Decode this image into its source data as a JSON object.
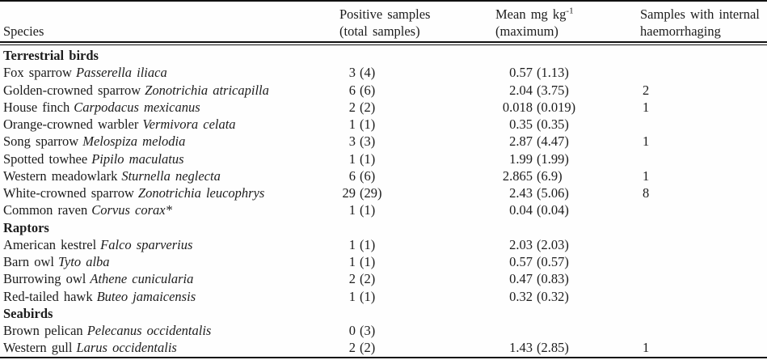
{
  "table": {
    "headers": {
      "species": "Species",
      "positive_line1": "Positive samples",
      "positive_line2": "(total samples)",
      "mean_line1": "Mean mg kg",
      "mean_sup": "-1",
      "mean_line2": "(maximum)",
      "haem_line1": "Samples with internal",
      "haem_line2": "haemorrhaging"
    },
    "sections": [
      {
        "label": "Terrestrial birds",
        "rows": [
          {
            "common": "Fox sparrow",
            "scientific": "Passerella iliaca",
            "positive": "3",
            "total": "(4)",
            "mean": "0.57",
            "maximum": "(1.13)",
            "haemorrhaging": ""
          },
          {
            "common": "Golden-crowned sparrow",
            "scientific": "Zonotrichia atricapilla",
            "positive": "6",
            "total": "(6)",
            "mean": "2.04",
            "maximum": "(3.75)",
            "haemorrhaging": "2"
          },
          {
            "common": "House finch",
            "scientific": "Carpodacus mexicanus",
            "positive": "2",
            "total": "(2)",
            "mean": "0.018",
            "maximum": "(0.019)",
            "haemorrhaging": "1"
          },
          {
            "common": "Orange-crowned warbler",
            "scientific": "Vermivora celata",
            "positive": "1",
            "total": "(1)",
            "mean": "0.35",
            "maximum": "(0.35)",
            "haemorrhaging": ""
          },
          {
            "common": "Song sparrow",
            "scientific": "Melospiza melodia",
            "positive": "3",
            "total": "(3)",
            "mean": "2.87",
            "maximum": "(4.47)",
            "haemorrhaging": "1"
          },
          {
            "common": "Spotted towhee",
            "scientific": "Pipilo maculatus",
            "positive": "1",
            "total": "(1)",
            "mean": "1.99",
            "maximum": "(1.99)",
            "haemorrhaging": ""
          },
          {
            "common": "Western meadowlark",
            "scientific": "Sturnella neglecta",
            "positive": "6",
            "total": "(6)",
            "mean": "2.865",
            "maximum": "(6.9)",
            "haemorrhaging": "1"
          },
          {
            "common": "White-crowned sparrow",
            "scientific": "Zonotrichia leucophrys",
            "positive": "29",
            "total": "(29)",
            "mean": "2.43",
            "maximum": "(5.06)",
            "haemorrhaging": "8"
          },
          {
            "common": "Common raven",
            "scientific": "Corvus corax*",
            "positive": "1",
            "total": "(1)",
            "mean": "0.04",
            "maximum": "(0.04)",
            "haemorrhaging": ""
          }
        ]
      },
      {
        "label": "Raptors",
        "rows": [
          {
            "common": "American kestrel",
            "scientific": "Falco sparverius",
            "positive": "1",
            "total": "(1)",
            "mean": "2.03",
            "maximum": "(2.03)",
            "haemorrhaging": ""
          },
          {
            "common": "Barn owl",
            "scientific": "Tyto alba",
            "positive": "1",
            "total": "(1)",
            "mean": "0.57",
            "maximum": "(0.57)",
            "haemorrhaging": ""
          },
          {
            "common": "Burrowing owl",
            "scientific": "Athene cunicularia",
            "positive": "2",
            "total": "(2)",
            "mean": "0.47",
            "maximum": "(0.83)",
            "haemorrhaging": ""
          },
          {
            "common": "Red-tailed hawk",
            "scientific": "Buteo jamaicensis",
            "positive": "1",
            "total": "(1)",
            "mean": "0.32",
            "maximum": "(0.32)",
            "haemorrhaging": ""
          }
        ]
      },
      {
        "label": "Seabirds",
        "rows": [
          {
            "common": "Brown pelican",
            "scientific": "Pelecanus occidentalis",
            "positive": "0",
            "total": "(3)",
            "mean": "",
            "maximum": "",
            "haemorrhaging": ""
          },
          {
            "common": "Western gull",
            "scientific": "Larus occidentalis",
            "positive": "2",
            "total": "(2)",
            "mean": "1.43",
            "maximum": "(2.85)",
            "haemorrhaging": "1"
          }
        ]
      }
    ]
  }
}
